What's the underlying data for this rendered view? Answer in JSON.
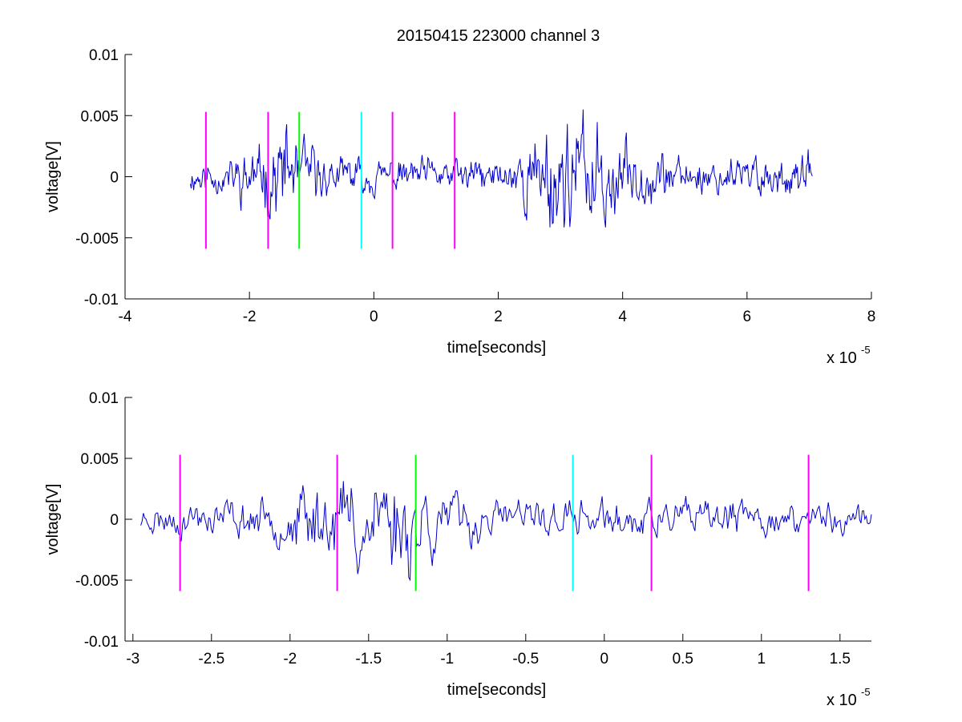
{
  "chart_data": [
    {
      "type": "line",
      "title": "20150415 223000 channel 3",
      "xlabel": "time[seconds]",
      "ylabel": "voltage[V]",
      "x_exponent_base": "x 10",
      "x_exponent_power": "-5",
      "xlim": [
        -4,
        8
      ],
      "ylim": [
        -0.01,
        0.01
      ],
      "xticks": [
        -4,
        -2,
        0,
        2,
        4,
        6,
        8
      ],
      "xtick_labels": [
        "-4",
        "-2",
        "0",
        "2",
        "4",
        "6",
        "8"
      ],
      "yticks": [
        0.01,
        0.005,
        0,
        -0.005,
        -0.01
      ],
      "ytick_labels": [
        "0.01",
        "0.005",
        "0",
        "-0.005",
        "-0.01"
      ],
      "signal": {
        "color": "#0000cc",
        "x_range": [
          -2.95,
          7.05
        ],
        "points": 750,
        "seed": 11,
        "envelope": [
          [
            -2.95,
            0.0009
          ],
          [
            -2.4,
            0.0011
          ],
          [
            -2.0,
            0.0016
          ],
          [
            -1.7,
            0.0022
          ],
          [
            -1.4,
            0.003
          ],
          [
            -1.1,
            0.0022
          ],
          [
            -0.8,
            0.0012
          ],
          [
            -0.2,
            0.001
          ],
          [
            0.5,
            0.001
          ],
          [
            1.5,
            0.001
          ],
          [
            2.2,
            0.001
          ],
          [
            2.5,
            0.0022
          ],
          [
            2.8,
            0.0033
          ],
          [
            3.3,
            0.0032
          ],
          [
            3.7,
            0.003
          ],
          [
            4.1,
            0.0018
          ],
          [
            5.0,
            0.0011
          ],
          [
            6.0,
            0.0012
          ],
          [
            7.05,
            0.0012
          ]
        ]
      },
      "markers": [
        {
          "x": -2.7,
          "color": "#ff00ff"
        },
        {
          "x": -1.7,
          "color": "#ff00ff"
        },
        {
          "x": -1.2,
          "color": "#00ff00"
        },
        {
          "x": -0.2,
          "color": "#00ffff"
        },
        {
          "x": 0.3,
          "color": "#ff00ff"
        },
        {
          "x": 1.3,
          "color": "#ff00ff"
        }
      ],
      "marker_y_range": [
        -0.0059,
        0.0053
      ]
    },
    {
      "type": "line",
      "title": "",
      "xlabel": "time[seconds]",
      "ylabel": "voltage[V]",
      "x_exponent_base": "x 10",
      "x_exponent_power": "-5",
      "xlim": [
        -3.05,
        1.7
      ],
      "ylim": [
        -0.01,
        0.01
      ],
      "xticks": [
        -3,
        -2.5,
        -2,
        -1.5,
        -1,
        -0.5,
        0,
        0.5,
        1,
        1.5
      ],
      "xtick_labels": [
        "-3",
        "-2.5",
        "-2",
        "-1.5",
        "-1",
        "-0.5",
        "0",
        "0.5",
        "1",
        "1.5"
      ],
      "yticks": [
        0.01,
        0.005,
        0,
        -0.005,
        -0.01
      ],
      "ytick_labels": [
        "0.01",
        "0.005",
        "0",
        "-0.005",
        "-0.01"
      ],
      "signal": {
        "color": "#0000cc",
        "x_range": [
          -2.95,
          1.7
        ],
        "points": 560,
        "seed": 23,
        "envelope": [
          [
            -2.95,
            0.0009
          ],
          [
            -2.5,
            0.0011
          ],
          [
            -2.1,
            0.0012
          ],
          [
            -1.9,
            0.0022
          ],
          [
            -1.7,
            0.0028
          ],
          [
            -1.45,
            0.0034
          ],
          [
            -1.2,
            0.0032
          ],
          [
            -1.0,
            0.0016
          ],
          [
            -0.6,
            0.0012
          ],
          [
            0.0,
            0.0011
          ],
          [
            0.5,
            0.0011
          ],
          [
            1.0,
            0.001
          ],
          [
            1.7,
            0.001
          ]
        ]
      },
      "markers": [
        {
          "x": -2.7,
          "color": "#ff00ff"
        },
        {
          "x": -1.7,
          "color": "#ff00ff"
        },
        {
          "x": -1.2,
          "color": "#00ff00"
        },
        {
          "x": -0.2,
          "color": "#00ffff"
        },
        {
          "x": 0.3,
          "color": "#ff00ff"
        },
        {
          "x": 1.3,
          "color": "#ff00ff"
        }
      ],
      "marker_y_range": [
        -0.0059,
        0.0053
      ]
    }
  ]
}
